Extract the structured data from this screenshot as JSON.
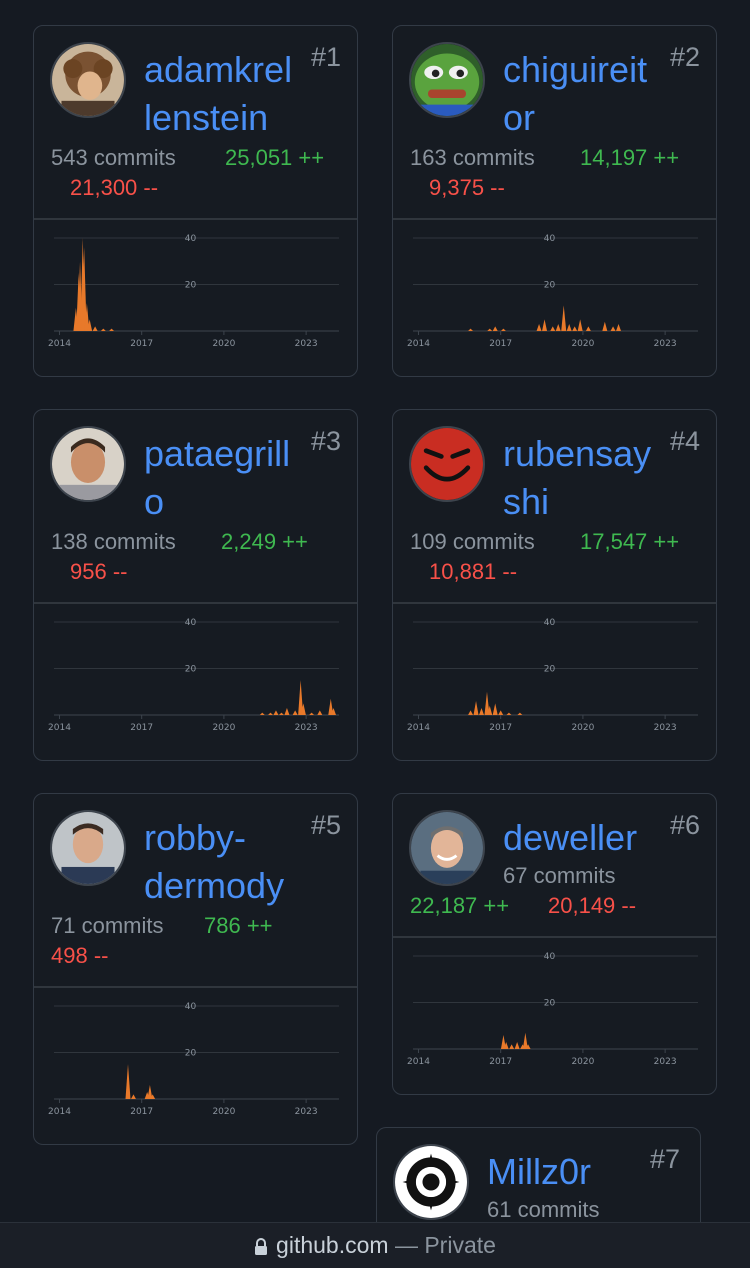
{
  "chart_axis": {
    "x_ticks": [
      "2014",
      "2017",
      "2020",
      "2023"
    ],
    "y_ticks": [
      "40",
      "20"
    ],
    "ylim": [
      0,
      40
    ]
  },
  "contributors": [
    {
      "rank": "#1",
      "name": "adamkrel\nlenstein",
      "commits": "543 commits",
      "additions": "25,051 ++",
      "deletions": "21,300 --",
      "activity": [
        [
          2014.6,
          10
        ],
        [
          2014.7,
          25
        ],
        [
          2014.75,
          30
        ],
        [
          2014.85,
          40
        ],
        [
          2014.9,
          36
        ],
        [
          2015.0,
          12
        ],
        [
          2015.1,
          5
        ],
        [
          2015.3,
          2
        ],
        [
          2015.6,
          1
        ],
        [
          2015.9,
          1
        ]
      ]
    },
    {
      "rank": "#2",
      "name": "chiguireit\nor",
      "commits": "163 commits",
      "additions": "14,197 ++",
      "deletions": "9,375 --",
      "activity": [
        [
          2015.9,
          1
        ],
        [
          2016.6,
          1
        ],
        [
          2016.8,
          2
        ],
        [
          2017.1,
          1
        ],
        [
          2018.4,
          3
        ],
        [
          2018.6,
          5
        ],
        [
          2018.9,
          2
        ],
        [
          2019.1,
          3
        ],
        [
          2019.3,
          11
        ],
        [
          2019.5,
          3
        ],
        [
          2019.7,
          2
        ],
        [
          2019.9,
          5
        ],
        [
          2020.2,
          2
        ],
        [
          2020.8,
          4
        ],
        [
          2021.1,
          2
        ],
        [
          2021.3,
          3
        ]
      ]
    },
    {
      "rank": "#3",
      "name": "pataegrill\no",
      "commits": "138 commits",
      "additions": "2,249 ++",
      "deletions": "956 --",
      "activity": [
        [
          2021.4,
          1
        ],
        [
          2021.7,
          1
        ],
        [
          2021.9,
          2
        ],
        [
          2022.1,
          1
        ],
        [
          2022.3,
          3
        ],
        [
          2022.6,
          2
        ],
        [
          2022.8,
          15
        ],
        [
          2022.9,
          5
        ],
        [
          2023.2,
          1
        ],
        [
          2023.5,
          2
        ],
        [
          2023.9,
          7
        ],
        [
          2024.0,
          3
        ]
      ]
    },
    {
      "rank": "#4",
      "name": "rubensay\nshi",
      "commits": "109 commits",
      "additions": "17,547 ++",
      "deletions": "10,881 --",
      "activity": [
        [
          2015.9,
          2
        ],
        [
          2016.1,
          6
        ],
        [
          2016.3,
          3
        ],
        [
          2016.5,
          10
        ],
        [
          2016.6,
          4
        ],
        [
          2016.8,
          5
        ],
        [
          2017.0,
          2
        ],
        [
          2017.3,
          1
        ],
        [
          2017.7,
          1
        ]
      ]
    },
    {
      "rank": "#5",
      "name": "robby-\ndermody",
      "commits": "71 commits",
      "additions": "786 ++",
      "deletions": "498 --",
      "activity": [
        [
          2016.5,
          15
        ],
        [
          2016.7,
          2
        ],
        [
          2017.2,
          3
        ],
        [
          2017.3,
          6
        ],
        [
          2017.4,
          2
        ]
      ]
    },
    {
      "rank": "#6",
      "name": "deweller",
      "commits": "67 commits",
      "additions": "22,187 ++",
      "deletions": "20,149 --",
      "activity": [
        [
          2017.1,
          6
        ],
        [
          2017.2,
          3
        ],
        [
          2017.4,
          2
        ],
        [
          2017.6,
          3
        ],
        [
          2017.8,
          2
        ],
        [
          2017.9,
          7
        ],
        [
          2018.0,
          2
        ]
      ]
    },
    {
      "rank": "#7",
      "name": "Millz0r",
      "commits": "61 commits"
    }
  ],
  "footer": {
    "domain": "github.com",
    "suffix": " — Private"
  },
  "colors": {
    "name": "#4a8ff5",
    "additions": "#3fb950",
    "deletions": "#f85149",
    "activity": "#e8792a"
  }
}
